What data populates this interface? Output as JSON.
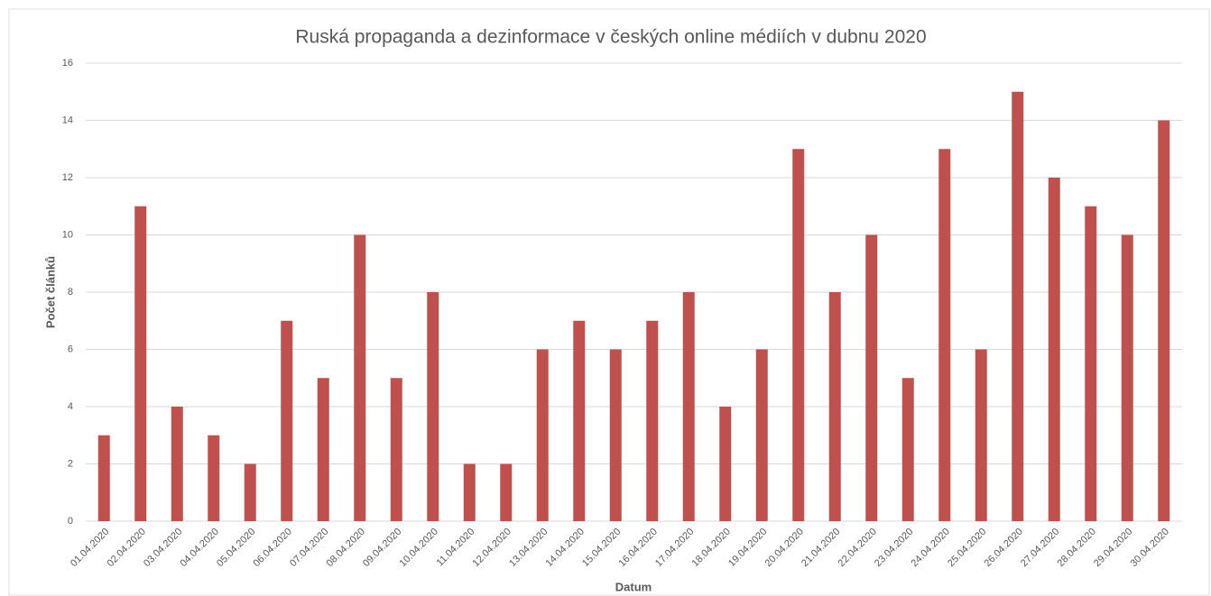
{
  "chart_data": {
    "type": "bar",
    "title": "Ruská propaganda a dezinformace v českých online médiích v dubnu 2020",
    "x_label": "Datum",
    "y_label": "Počet článků",
    "categories": [
      "01.04.2020",
      "02.04.2020",
      "03.04.2020",
      "04.04.2020",
      "05.04.2020",
      "06.04.2020",
      "07.04.2020",
      "08.04.2020",
      "09.04.2020",
      "10.04.2020",
      "11.04.2020",
      "12.04.2020",
      "13.04.2020",
      "14.04.2020",
      "15.04.2020",
      "16.04.2020",
      "17.04.2020",
      "18.04.2020",
      "19.04.2020",
      "20.04.2020",
      "21.04.2020",
      "22.04.2020",
      "23.04.2020",
      "24.04.2020",
      "25.04.2020",
      "26.04.2020",
      "27.04.2020",
      "28.04.2020",
      "29.04.2020",
      "30.04.2020"
    ],
    "values": [
      3,
      11,
      4,
      3,
      2,
      7,
      5,
      10,
      5,
      8,
      2,
      2,
      6,
      7,
      6,
      7,
      8,
      4,
      6,
      13,
      8,
      10,
      5,
      13,
      6,
      15,
      12,
      11,
      10,
      14
    ],
    "color": "#c0504d",
    "ylim": [
      0,
      16
    ],
    "yticks": [
      0,
      2,
      4,
      6,
      8,
      10,
      12,
      14,
      16
    ],
    "grid": true
  }
}
